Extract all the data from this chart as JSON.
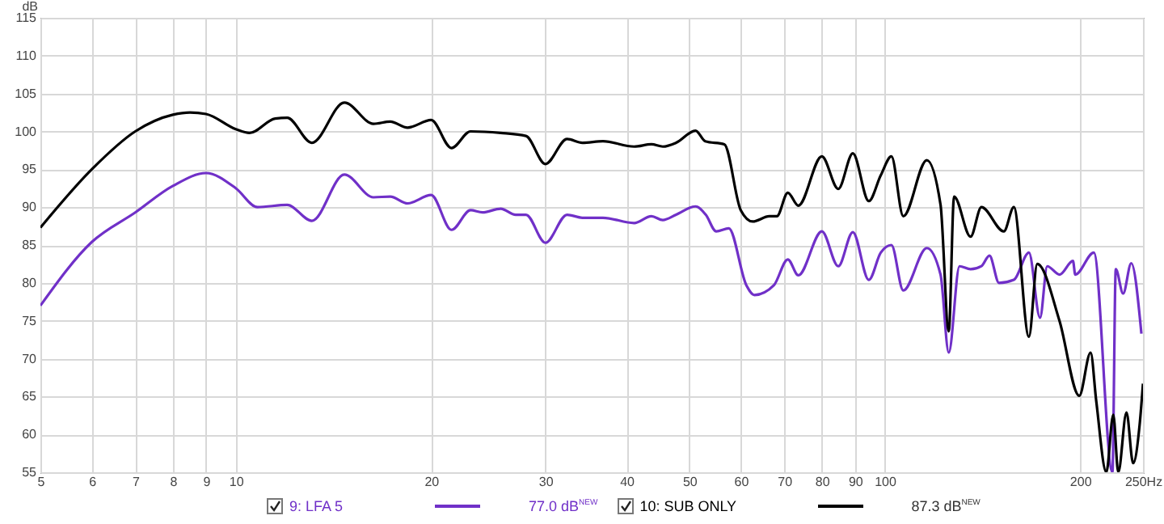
{
  "chart_data": {
    "type": "line",
    "ylabel": "dB",
    "log": "x",
    "grid": true,
    "legend": "bottom",
    "xlim": [
      5,
      250
    ],
    "ylim": [
      55,
      115
    ],
    "xticks": [
      5,
      6,
      7,
      8,
      9,
      10,
      20,
      30,
      40,
      50,
      60,
      70,
      80,
      90,
      100,
      200,
      {
        "value": 250,
        "label": "250Hz"
      }
    ],
    "yticks": [
      55,
      60,
      65,
      70,
      75,
      80,
      85,
      90,
      95,
      100,
      105,
      110,
      115
    ],
    "annotations": [
      "77.0 dB$^{NEW}$",
      "87.3 dB$^{NEW}$"
    ],
    "series": [
      {
        "name": "9: LFA 5",
        "color": "#7030c8",
        "x": [
          5,
          6,
          7,
          8,
          9,
          10,
          10.8,
          12,
          13.1,
          14.7,
          16.3,
          17.3,
          18.4,
          20,
          21.5,
          23,
          24,
          25.6,
          27,
          28,
          30,
          32.4,
          34.2,
          36.8,
          41.1,
          43.7,
          45.5,
          47.7,
          51.1,
          53,
          55,
          57.5,
          61.2,
          63,
          67.5,
          70.9,
          73.6,
          80,
          84.8,
          89.3,
          94.5,
          98.6,
          102.4,
          106.8,
          116.1,
          121.9,
          125.5,
          130.4,
          135.6,
          140.9,
          145,
          150,
          158.1,
          166.8,
          173.5,
          178,
          186,
          195,
          196.6,
          210,
          224.3,
          227,
          233,
          239.8,
          248.6
        ],
        "values": [
          77,
          85.4,
          89.3,
          92.8,
          94.5,
          92.5,
          90,
          90.3,
          88.2,
          94.3,
          91.3,
          91.4,
          90.5,
          91.6,
          87,
          89.6,
          89.3,
          89.8,
          89,
          89,
          85.3,
          89,
          88.6,
          88.6,
          87.9,
          88.8,
          88.3,
          89,
          90.1,
          89,
          86.8,
          87.2,
          79.7,
          78.4,
          79.7,
          83.1,
          81,
          86.8,
          82.2,
          86.7,
          80.4,
          84,
          85,
          79,
          84.6,
          81.1,
          70.8,
          82.2,
          81.8,
          82.2,
          83.6,
          80,
          80.4,
          84,
          75.4,
          82.2,
          81.1,
          82.9,
          81.1,
          84,
          55,
          81.8,
          78.6,
          82.6,
          73.3
        ]
      },
      {
        "name": "10: SUB ONLY",
        "color": "#000000",
        "x": [
          5,
          6,
          7,
          8,
          8.5,
          9,
          10,
          10.5,
          11.5,
          12,
          13.1,
          14.7,
          16.3,
          17.3,
          18.4,
          20,
          21.5,
          23,
          25.6,
          28,
          30,
          32.4,
          34.2,
          36.8,
          41.1,
          43.7,
          45.5,
          47.7,
          51.1,
          52.9,
          56.6,
          60,
          62.6,
          66.4,
          68.2,
          70.9,
          73.6,
          80,
          84.8,
          89.3,
          94.5,
          98.6,
          102.4,
          106.8,
          116.1,
          121.9,
          125.5,
          127.9,
          135.6,
          140.9,
          152.6,
          158.1,
          166.8,
          171.8,
          185.9,
          199.4,
          207.6,
          211.8,
          219.5,
          225,
          229,
          235.8,
          241.4,
          247,
          250
        ],
        "values": [
          87.3,
          95,
          100,
          102.2,
          102.5,
          102.3,
          100.3,
          99.8,
          101.7,
          101.8,
          98.5,
          103.8,
          101,
          101.3,
          100.5,
          101.5,
          97.8,
          100,
          99.8,
          99.4,
          95.7,
          99,
          98.5,
          98.7,
          98,
          98.3,
          98,
          98.5,
          100.1,
          98.7,
          98.3,
          89.6,
          88.1,
          88.8,
          88.8,
          91.9,
          90.2,
          96.7,
          92.4,
          97.1,
          90.8,
          94.2,
          96.7,
          88.8,
          96.2,
          90.3,
          73.6,
          91.4,
          86.1,
          90,
          86.8,
          90,
          72.9,
          82.5,
          75,
          65.1,
          70.8,
          64.4,
          55,
          62.6,
          55,
          62.9,
          56.2,
          61.2,
          66.7
        ]
      }
    ]
  }
}
